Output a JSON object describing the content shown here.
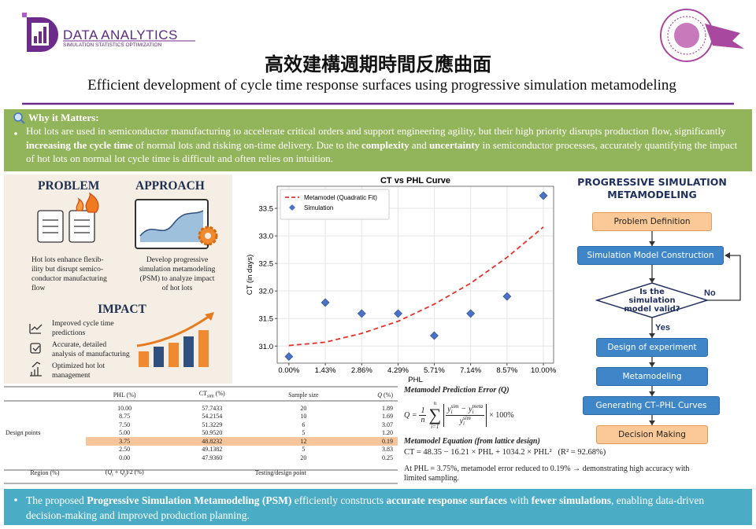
{
  "header": {
    "logo_title": "DATA ANALYTICS",
    "logo_subtitle": "SIMULATION STATISTICS OPTIMIZATION",
    "title": "高效建構週期時間反應曲面",
    "subtitle": "Efficient development of cycle time response surfaces using progressive simulation metamodeling"
  },
  "why": {
    "heading": "Why it Matters:",
    "segments": [
      {
        "text": "Hot lots are used in semiconductor manufacturing to accelerate critical orders and support engineering agility, but their high priority disrupts production flow, significantly ",
        "bold": false
      },
      {
        "text": "increasing the cycle time",
        "bold": true
      },
      {
        "text": " of normal lots and risking on-time delivery. Due to the ",
        "bold": false
      },
      {
        "text": "complexity",
        "bold": true
      },
      {
        "text": " and ",
        "bold": false
      },
      {
        "text": "uncertainty",
        "bold": true
      },
      {
        "text": " in semiconductor processes, accurately quantifying the impact of hot lots on normal lot cycle time is difficult and often relies on intuition.",
        "bold": false
      }
    ]
  },
  "overview": {
    "problem": {
      "heading": "PROBLEM",
      "lines": [
        "Hot lots enhance flexib-",
        "ility but disrupt semico-",
        "conductor manufacturing",
        "flow"
      ]
    },
    "approach": {
      "heading": "APPROACH",
      "lines": [
        "Develop progressive",
        "simulation metamodeling",
        "(PSM) to analyze impact",
        "of hot lots"
      ]
    },
    "impact": {
      "heading": "IMPACT",
      "items": [
        {
          "lines": [
            "Improved cycle time",
            "predictions"
          ]
        },
        {
          "lines": [
            "Accurate, detailed",
            "analysis of manufacturing"
          ]
        },
        {
          "lines": [
            "Optimized hot lot",
            "management"
          ]
        }
      ]
    }
  },
  "chart_data": {
    "type": "combo",
    "title": "CT vs PHL Curve",
    "x_label": "PHL",
    "y_label": "CT (in days)",
    "xlim": [
      -0.46,
      10.4
    ],
    "ylim": [
      30.69,
      33.9
    ],
    "xticks": [
      {
        "value": 0,
        "label": "0.00%"
      },
      {
        "value": 1.43,
        "label": "1.43%"
      },
      {
        "value": 2.86,
        "label": "2.86%"
      },
      {
        "value": 4.29,
        "label": "4.29%"
      },
      {
        "value": 5.71,
        "label": "5.71%"
      },
      {
        "value": 7.14,
        "label": "7.14%"
      },
      {
        "value": 8.57,
        "label": "8.57%"
      },
      {
        "value": 10,
        "label": "10.00%"
      }
    ],
    "yticks": [
      {
        "value": 31,
        "label": "31.0"
      },
      {
        "value": 31.5,
        "label": "31.5"
      },
      {
        "value": 32,
        "label": "32.0"
      },
      {
        "value": 32.5,
        "label": "32.5"
      },
      {
        "value": 33,
        "label": "33.0"
      },
      {
        "value": 33.5,
        "label": "33.5"
      }
    ],
    "grid": true,
    "legend": "upper left",
    "series": [
      {
        "name": "Metamodel (Quadratic Fit)",
        "type": "line",
        "dashed": true,
        "color": "#e8302a",
        "x": [
          0,
          1.43,
          2.86,
          4.29,
          5.71,
          7.14,
          8.57,
          10
        ],
        "values": [
          31.01,
          31.07,
          31.23,
          31.45,
          31.76,
          32.14,
          32.61,
          33.16
        ]
      },
      {
        "name": "Simulation",
        "type": "scatter",
        "marker": "diamond",
        "color": "#4a72c4",
        "x": [
          0,
          1.43,
          2.86,
          4.29,
          5.71,
          7.14,
          8.57,
          10
        ],
        "values": [
          30.81,
          31.79,
          31.59,
          31.59,
          31.19,
          31.59,
          31.9,
          33.73
        ]
      }
    ]
  },
  "flow": {
    "title": [
      "PROGRESSIVE SIMULATION",
      "METAMODELING"
    ],
    "nodes": [
      {
        "label": "Problem Definition",
        "kind": "terminal"
      },
      {
        "label": "Simulation Model Construction",
        "kind": "process"
      },
      {
        "label": "Is the simulation model valid?",
        "kind": "decision"
      },
      {
        "label": "Design of experiment",
        "kind": "process"
      },
      {
        "label": "Metamodeling",
        "kind": "process"
      },
      {
        "label": "Generating CT–PHL Curves",
        "kind": "process"
      },
      {
        "label": "Decision Making",
        "kind": "terminal"
      }
    ],
    "no": "No",
    "yes": "Yes"
  },
  "table": {
    "columns": [
      [
        {
          "text": "PHL (%)"
        }
      ],
      [
        {
          "text": "CT"
        },
        {
          "text": "sim",
          "style": "sub"
        },
        {
          "text": " (%)"
        }
      ],
      [
        {
          "text": "Sample size"
        }
      ],
      [
        {
          "text": "Q",
          "style": "italic"
        },
        {
          "text": " (%)"
        }
      ]
    ],
    "group_label": "Design points",
    "rows": [
      [
        "10.00",
        "57.7433",
        "20",
        "1.89"
      ],
      [
        "8.75",
        "54.2154",
        "10",
        "1.69"
      ],
      [
        "7.50",
        "51.3229",
        "6",
        "3.07"
      ],
      [
        "5.00",
        "50.9520",
        "5",
        "1.20"
      ],
      [
        "3.75",
        "48.8232",
        "12",
        "0.19"
      ],
      [
        "2.50",
        "49.1382",
        "5",
        "3.83"
      ],
      [
        "0.00",
        "47.9360",
        "20",
        "0.25"
      ]
    ],
    "highlight_row": 4,
    "footer": [
      [
        {
          "text": "Region (%)"
        }
      ],
      [
        {
          "text": "("
        },
        {
          "text": "Q",
          "style": "italic"
        },
        {
          "text": "i",
          "style": "sub"
        },
        {
          "text": " + "
        },
        {
          "text": "Q",
          "style": "italic"
        },
        {
          "text": "j",
          "style": "sub"
        },
        {
          "text": ")/2 (%)"
        }
      ],
      [
        {
          "text": "Testing/design point"
        }
      ]
    ]
  },
  "formulas": {
    "error_heading": "Metamodel Prediction Error (Q)",
    "lhs": "Q =",
    "frac": [
      "1",
      "n"
    ],
    "sum": "∑",
    "sum_top": "n",
    "sum_bottom": "i=1",
    "numerator": [
      {
        "base": "y",
        "sup": "sim",
        "sub": "i"
      },
      {
        "op": "−"
      },
      {
        "base": "y",
        "sup": "meta",
        "sub": "i"
      }
    ],
    "denominator": [
      {
        "base": "y",
        "sup": "sim",
        "sub": "i"
      }
    ],
    "tail": "× 100%",
    "equation_heading": "Metamodel Equation (from lattice design)",
    "equation": "CT = 48.35 − 16.21 × PHL + 1034.2 × PHL²",
    "r2": "(R² = 92.68%)",
    "note": "At PHL = 3.75%, metamodel error reduced to 0.19% → demonstrating high accuracy with limited sampling."
  },
  "conclusion": {
    "segments": [
      {
        "text": "The proposed ",
        "bold": false
      },
      {
        "text": "Progressive Simulation Metamodeling (PSM)",
        "bold": true
      },
      {
        "text": " efficiently constructs ",
        "bold": false
      },
      {
        "text": "accurate response surfaces",
        "bold": true
      },
      {
        "text": " with ",
        "bold": false
      },
      {
        "text": "fewer simulations",
        "bold": true
      },
      {
        "text": ", enabling data-driven decision-making and improved production planning.",
        "bold": false
      }
    ]
  }
}
